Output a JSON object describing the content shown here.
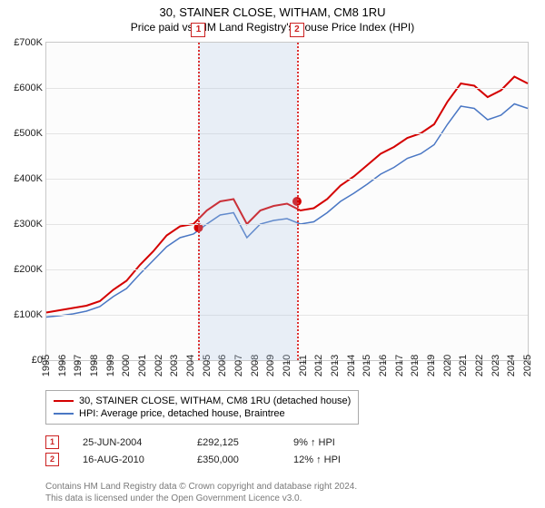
{
  "title": "30, STAINER CLOSE, WITHAM, CM8 1RU",
  "subtitle": "Price paid vs. HM Land Registry's House Price Index (HPI)",
  "chart": {
    "type": "line",
    "background_color": "#fcfcfc",
    "grid_color": "#e4e4e4",
    "border_color": "#c8c8c8",
    "x_years": [
      1995,
      1996,
      1997,
      1998,
      1999,
      2000,
      2001,
      2002,
      2003,
      2004,
      2005,
      2006,
      2007,
      2008,
      2009,
      2010,
      2011,
      2012,
      2013,
      2014,
      2015,
      2016,
      2017,
      2018,
      2019,
      2020,
      2021,
      2022,
      2023,
      2024,
      2025
    ],
    "ylim": [
      0,
      700000
    ],
    "ytick_step": 100000,
    "yticks": [
      "£0",
      "£100K",
      "£200K",
      "£300K",
      "£400K",
      "£500K",
      "£600K",
      "£700K"
    ],
    "band": {
      "start": 2004.48,
      "end": 2010.62,
      "color": "rgba(173,195,228,0.25)"
    },
    "vlines": [
      {
        "x": 2004.48,
        "label": "1"
      },
      {
        "x": 2010.62,
        "label": "2"
      }
    ],
    "vline_color": "#d33",
    "marker_box_border": "#cc2222",
    "series": [
      {
        "name": "30, STAINER CLOSE, WITHAM, CM8 1RU (detached house)",
        "color": "#d40000",
        "width": 2,
        "y": [
          105,
          110,
          115,
          120,
          130,
          155,
          175,
          210,
          240,
          275,
          295,
          300,
          330,
          350,
          355,
          300,
          330,
          340,
          345,
          330,
          335,
          355,
          385,
          405,
          430,
          455,
          470,
          490,
          500,
          520,
          570,
          610,
          605,
          580,
          595,
          625,
          610
        ]
      },
      {
        "name": "HPI: Average price, detached house, Braintree",
        "color": "#4a77c4",
        "width": 1.5,
        "y": [
          95,
          98,
          102,
          108,
          118,
          140,
          158,
          190,
          220,
          250,
          270,
          278,
          300,
          320,
          325,
          270,
          300,
          308,
          312,
          300,
          305,
          325,
          350,
          368,
          388,
          410,
          425,
          445,
          455,
          475,
          520,
          560,
          555,
          530,
          540,
          565,
          555
        ]
      }
    ],
    "sale_points": [
      {
        "x": 2004.48,
        "y": 292125,
        "color": "#d40000"
      },
      {
        "x": 2010.62,
        "y": 350000,
        "color": "#d40000"
      }
    ],
    "marker_radius": 5
  },
  "legend": {
    "items": [
      {
        "color": "#d40000",
        "label": "30, STAINER CLOSE, WITHAM, CM8 1RU (detached house)"
      },
      {
        "color": "#4a77c4",
        "label": "HPI: Average price, detached house, Braintree"
      }
    ]
  },
  "sales": [
    {
      "n": "1",
      "date": "25-JUN-2004",
      "price": "£292,125",
      "vs": "9% ↑ HPI"
    },
    {
      "n": "2",
      "date": "16-AUG-2010",
      "price": "£350,000",
      "vs": "12% ↑ HPI"
    }
  ],
  "footer": {
    "line1": "Contains HM Land Registry data © Crown copyright and database right 2024.",
    "line2": "This data is licensed under the Open Government Licence v3.0."
  }
}
